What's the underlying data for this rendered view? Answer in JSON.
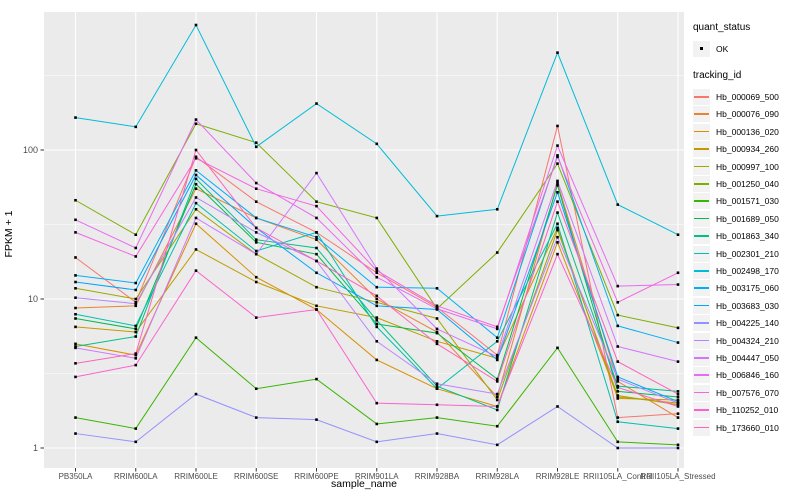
{
  "figure": {
    "background": "#FFFFFF",
    "panel_background": "#EBEBEB",
    "grid_color": "#FFFFFF",
    "axis_text_color": "#4D4D4D",
    "axis_title_color": "#000000",
    "point_color": "#000000",
    "legend_key_background": "#F2F2F2"
  },
  "legend": {
    "quant_status_title": "quant_status",
    "quant_status_items": [
      {
        "label": "OK",
        "shape": "point"
      }
    ],
    "tracking_id_title": "tracking_id"
  },
  "chart_data": {
    "type": "line",
    "title": "",
    "xlabel": "sample_name",
    "ylabel": "FPKM + 1",
    "y_scale": "log10",
    "y_ticks": [
      1,
      10,
      100
    ],
    "y_minor_gridlines": [
      3.162,
      31.623,
      316.228
    ],
    "ylim": [
      0.73,
      845
    ],
    "grid": "on",
    "legend_position": "right",
    "point_marker": "small black square",
    "quant_status_all_points": "OK",
    "categories": [
      "PB350LA",
      "RRIM600LA",
      "RRIM600LE",
      "RRIM600SE",
      "RRIM600PE",
      "RRIM901LA",
      "RRIM928BA",
      "RRIM928LA",
      "RRIM928LE",
      "RRII105LA_Control",
      "RRII105LA_Stressed"
    ],
    "series": [
      {
        "name": "Hb_000069_500",
        "color": "#F8766D",
        "values": [
          19,
          9.5,
          90,
          45,
          28,
          15,
          8.8,
          4.2,
          145,
          1.6,
          1.7
        ]
      },
      {
        "name": "Hb_000076_090",
        "color": "#EA8331",
        "values": [
          8.7,
          9.0,
          55,
          35,
          25,
          10,
          6.0,
          2.2,
          60,
          2.8,
          1.6
        ]
      },
      {
        "name": "Hb_000136_020",
        "color": "#D89000",
        "values": [
          5.0,
          4.2,
          32,
          14,
          8.5,
          3.9,
          2.5,
          1.9,
          24,
          2.2,
          2.0
        ]
      },
      {
        "name": "Hb_000934_260",
        "color": "#C09B00",
        "values": [
          6.5,
          6.0,
          21.5,
          13,
          9.0,
          7.5,
          5.2,
          4.0,
          30,
          2.15,
          2.1
        ]
      },
      {
        "name": "Hb_000997_100",
        "color": "#A3A500",
        "values": [
          11.8,
          10,
          40,
          20,
          12,
          9.5,
          7.4,
          2.1,
          29,
          2.25,
          1.95
        ]
      },
      {
        "name": "Hb_001250_040",
        "color": "#7CAE00",
        "values": [
          46,
          27,
          150,
          112,
          45,
          35,
          8.6,
          20.5,
          81,
          7.8,
          6.4
        ]
      },
      {
        "name": "Hb_001571_030",
        "color": "#39B600",
        "values": [
          1.6,
          1.35,
          5.5,
          2.5,
          2.9,
          1.45,
          1.6,
          1.4,
          4.7,
          1.1,
          1.05
        ]
      },
      {
        "name": "Hb_001689_050",
        "color": "#00BB4E",
        "values": [
          7.4,
          6.3,
          59,
          24,
          20,
          6.8,
          5.9,
          2.9,
          58,
          2.4,
          2.2
        ]
      },
      {
        "name": "Hb_001863_340",
        "color": "#00C087",
        "values": [
          4.8,
          5.6,
          64,
          25,
          22,
          7.2,
          2.6,
          1.8,
          38,
          2.6,
          2.4
        ]
      },
      {
        "name": "Hb_002301_210",
        "color": "#00C0AF",
        "values": [
          7.9,
          6.6,
          44,
          21,
          28,
          6.5,
          2.5,
          5.2,
          32,
          1.5,
          1.35
        ]
      },
      {
        "name": "Hb_002498_170",
        "color": "#00BCD8",
        "values": [
          165,
          143,
          690,
          105,
          205,
          110,
          36,
          40,
          450,
          43,
          27
        ]
      },
      {
        "name": "Hb_003175_060",
        "color": "#00B0F6",
        "values": [
          14.4,
          12.8,
          73,
          35,
          26,
          12,
          11.8,
          5.5,
          92,
          6.6,
          5.1
        ]
      },
      {
        "name": "Hb_003683_030",
        "color": "#00A5FF",
        "values": [
          13,
          11.5,
          68,
          30,
          15,
          9.0,
          8.5,
          3.9,
          52,
          3.0,
          2.05
        ]
      },
      {
        "name": "Hb_004225_140",
        "color": "#9590FF",
        "values": [
          1.25,
          1.1,
          2.3,
          1.6,
          1.55,
          1.1,
          1.25,
          1.05,
          1.9,
          1.0,
          1.0
        ]
      },
      {
        "name": "Hb_004324_210",
        "color": "#B983FF",
        "values": [
          10.2,
          9.3,
          48,
          28,
          18,
          5.2,
          2.7,
          2.3,
          26,
          2.9,
          2.0
        ]
      },
      {
        "name": "Hb_004447_050",
        "color": "#D376FF",
        "values": [
          4.7,
          4.0,
          35,
          20,
          70,
          16,
          6.3,
          4.1,
          62,
          4.8,
          3.8
        ]
      },
      {
        "name": "Hb_006846_160",
        "color": "#E76BF3",
        "values": [
          34,
          22,
          160,
          60,
          35,
          14,
          8.6,
          6.3,
          107,
          12.2,
          12.5
        ]
      },
      {
        "name": "Hb_007576_070",
        "color": "#F564E3",
        "values": [
          28,
          19.3,
          88,
          55,
          42,
          15.5,
          9.0,
          6.5,
          90,
          9.5,
          15
        ]
      },
      {
        "name": "Hb_110252_010",
        "color": "#FD61D1",
        "values": [
          3.0,
          3.6,
          15.5,
          7.5,
          8.5,
          2.0,
          1.95,
          1.9,
          20,
          2.55,
          1.9
        ]
      },
      {
        "name": "Hb_173660_010",
        "color": "#FF62BC",
        "values": [
          3.7,
          4.3,
          100,
          30,
          18,
          10.5,
          5.0,
          2.8,
          45,
          3.8,
          2.3
        ]
      }
    ]
  }
}
